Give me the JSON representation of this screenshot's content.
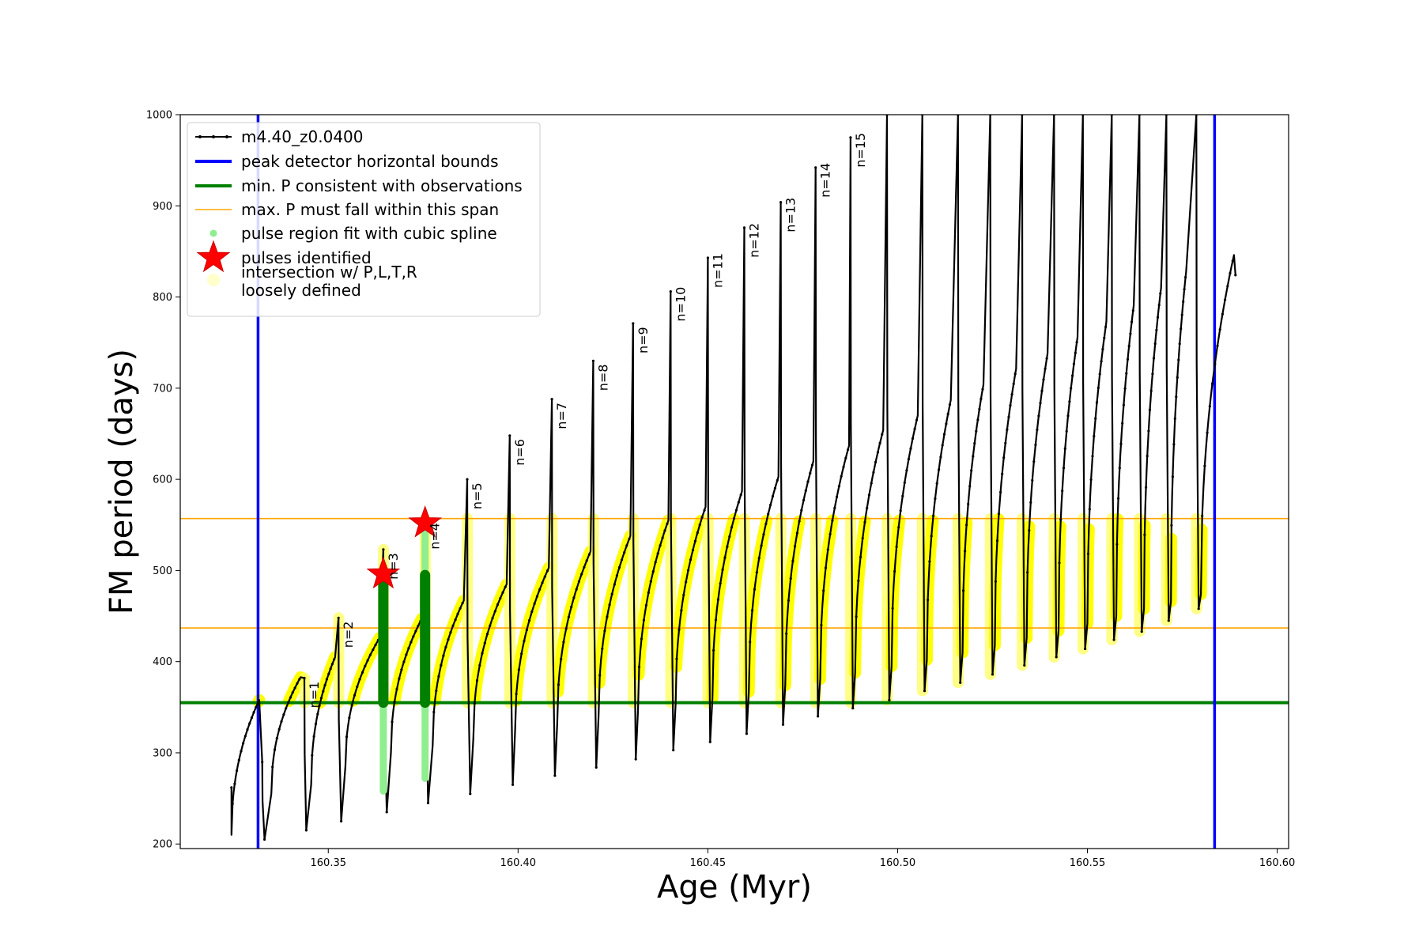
{
  "chart_data": {
    "type": "line",
    "xlabel": "Age (Myr)",
    "ylabel": "FM period (days)",
    "xlim": [
      160.311,
      160.603
    ],
    "ylim": [
      195,
      1000
    ],
    "xticks": [
      160.35,
      160.4,
      160.45,
      160.5,
      160.55,
      160.6
    ],
    "xtick_labels": [
      "160.35",
      "160.40",
      "160.45",
      "160.50",
      "160.55",
      "160.60"
    ],
    "yticks": [
      200,
      300,
      400,
      500,
      600,
      700,
      800,
      900,
      1000
    ],
    "ytick_labels": [
      "200",
      "300",
      "400",
      "500",
      "600",
      "700",
      "800",
      "900",
      "1000"
    ],
    "grid": false,
    "legend_position": "top-left",
    "legend": [
      {
        "label": "m4.40_z0.0400",
        "kind": "line-marker",
        "color": "#000000"
      },
      {
        "label": "peak detector horizontal bounds",
        "kind": "line",
        "color": "#0000ff"
      },
      {
        "label": "min. P consistent with observations",
        "kind": "line",
        "color": "#008000"
      },
      {
        "label": "max. P must fall within this span",
        "kind": "line",
        "color": "#ffa500"
      },
      {
        "label": "pulse region fit with cubic spline",
        "kind": "dot",
        "color": "#90ee90"
      },
      {
        "label": "pulses identified",
        "kind": "star",
        "color": "#ff0000"
      },
      {
        "label": "intersection w/ P,L,T,R\nloosely defined",
        "kind": "dot",
        "color": "#ffffcc"
      }
    ],
    "reference_lines": {
      "peak_detector_bounds_x": [
        160.3315,
        160.5835
      ],
      "min_period_y": 355,
      "max_period_span_y": [
        437,
        557
      ]
    },
    "track": {
      "name": "m4.40_z0.0400",
      "start": {
        "age": 160.3245,
        "period": 262
      },
      "cycles": [
        {
          "n": 0,
          "trough_age": 160.3245,
          "trough_p": 210,
          "peak_age": 160.3318,
          "peak_p": 358,
          "spike_age": 160.3326,
          "spike_p": 290,
          "min_age": 160.3332,
          "min_p": 205
        },
        {
          "n": 1,
          "trough_age": 160.335,
          "trough_p": 255,
          "peak_age": 160.3427,
          "peak_p": 383,
          "spike_age": 160.3437,
          "spike_p": 382,
          "min_age": 160.3442,
          "min_p": 215
        },
        {
          "n": 2,
          "trough_age": 160.3455,
          "trough_p": 265,
          "peak_age": 160.3518,
          "peak_p": 405,
          "spike_age": 160.3527,
          "spike_p": 448,
          "min_age": 160.3534,
          "min_p": 225
        },
        {
          "n": 3,
          "trough_age": 160.3545,
          "trough_p": 285,
          "peak_age": 160.3635,
          "peak_p": 426,
          "spike_age": 160.3645,
          "spike_p": 523,
          "min_age": 160.3654,
          "min_p": 235
        },
        {
          "n": 4,
          "trough_age": 160.3665,
          "trough_p": 300,
          "peak_age": 160.3746,
          "peak_p": 447,
          "spike_age": 160.3755,
          "spike_p": 556,
          "min_age": 160.3763,
          "min_p": 245
        },
        {
          "n": 5,
          "trough_age": 160.3775,
          "trough_p": 308,
          "peak_age": 160.3857,
          "peak_p": 467,
          "spike_age": 160.3866,
          "spike_p": 600,
          "min_age": 160.3874,
          "min_p": 255
        },
        {
          "n": 6,
          "trough_age": 160.3882,
          "trough_p": 315,
          "peak_age": 160.397,
          "peak_p": 485,
          "spike_age": 160.3978,
          "spike_p": 648,
          "min_age": 160.3986,
          "min_p": 265
        },
        {
          "n": 7,
          "trough_age": 160.3992,
          "trough_p": 323,
          "peak_age": 160.4081,
          "peak_p": 503,
          "spike_age": 160.4089,
          "spike_p": 688,
          "min_age": 160.4097,
          "min_p": 275
        },
        {
          "n": 8,
          "trough_age": 160.4103,
          "trough_p": 331,
          "peak_age": 160.4191,
          "peak_p": 521,
          "spike_age": 160.4198,
          "spike_p": 730,
          "min_age": 160.4206,
          "min_p": 284
        },
        {
          "n": 9,
          "trough_age": 160.4212,
          "trough_p": 339,
          "peak_age": 160.4296,
          "peak_p": 538,
          "spike_age": 160.4303,
          "spike_p": 771,
          "min_age": 160.431,
          "min_p": 293
        },
        {
          "n": 10,
          "trough_age": 160.4316,
          "trough_p": 346,
          "peak_age": 160.4396,
          "peak_p": 555,
          "spike_age": 160.4402,
          "spike_p": 806,
          "min_age": 160.4409,
          "min_p": 303
        },
        {
          "n": 11,
          "trough_age": 160.4415,
          "trough_p": 353,
          "peak_age": 160.4494,
          "peak_p": 570,
          "spike_age": 160.45,
          "spike_p": 843,
          "min_age": 160.4506,
          "min_p": 312
        },
        {
          "n": 12,
          "trough_age": 160.4512,
          "trough_p": 360,
          "peak_age": 160.459,
          "peak_p": 587,
          "spike_age": 160.4596,
          "spike_p": 876,
          "min_age": 160.4602,
          "min_p": 321
        },
        {
          "n": 13,
          "trough_age": 160.4608,
          "trough_p": 367,
          "peak_age": 160.4686,
          "peak_p": 603,
          "spike_age": 160.4692,
          "spike_p": 904,
          "min_age": 160.4698,
          "min_p": 331
        },
        {
          "n": 14,
          "trough_age": 160.4704,
          "trough_p": 374,
          "peak_age": 160.4778,
          "peak_p": 620,
          "spike_age": 160.4784,
          "spike_p": 942,
          "min_age": 160.479,
          "min_p": 340
        },
        {
          "n": 15,
          "trough_age": 160.4796,
          "trough_p": 381,
          "peak_age": 160.4872,
          "peak_p": 637,
          "spike_age": 160.4876,
          "spike_p": 975,
          "min_age": 160.4882,
          "min_p": 349
        },
        {
          "n": 16,
          "trough_age": 160.4888,
          "trough_p": 388,
          "peak_age": 160.4962,
          "peak_p": 654,
          "spike_age": 160.4972,
          "spike_p": 1000,
          "min_age": 160.4978,
          "min_p": 358
        },
        {
          "n": 17,
          "trough_age": 160.4984,
          "trough_p": 395,
          "peak_age": 160.5053,
          "peak_p": 670,
          "spike_age": 160.5065,
          "spike_p": 1000,
          "min_age": 160.5071,
          "min_p": 368
        },
        {
          "n": 18,
          "trough_age": 160.5077,
          "trough_p": 402,
          "peak_age": 160.514,
          "peak_p": 687,
          "spike_age": 160.5159,
          "spike_p": 1000,
          "min_age": 160.5165,
          "min_p": 377
        },
        {
          "n": 19,
          "trough_age": 160.5171,
          "trough_p": 410,
          "peak_age": 160.5226,
          "peak_p": 704,
          "spike_age": 160.5244,
          "spike_p": 1000,
          "min_age": 160.525,
          "min_p": 386
        },
        {
          "n": 20,
          "trough_age": 160.5256,
          "trough_p": 418,
          "peak_age": 160.5312,
          "peak_p": 721,
          "spike_age": 160.5328,
          "spike_p": 1000,
          "min_age": 160.5334,
          "min_p": 396
        },
        {
          "n": 21,
          "trough_age": 160.534,
          "trough_p": 426,
          "peak_age": 160.5395,
          "peak_p": 738,
          "spike_age": 160.5412,
          "spike_p": 1000,
          "min_age": 160.5418,
          "min_p": 405
        },
        {
          "n": 22,
          "trough_age": 160.5424,
          "trough_p": 434,
          "peak_age": 160.5474,
          "peak_p": 756,
          "spike_age": 160.5488,
          "spike_p": 1000,
          "min_age": 160.5494,
          "min_p": 414
        },
        {
          "n": 23,
          "trough_age": 160.55,
          "trough_p": 442,
          "peak_age": 160.555,
          "peak_p": 773,
          "spike_age": 160.5564,
          "spike_p": 1000,
          "min_age": 160.557,
          "min_p": 424
        },
        {
          "n": 24,
          "trough_age": 160.5576,
          "trough_p": 450,
          "peak_age": 160.5622,
          "peak_p": 791,
          "spike_age": 160.5637,
          "spike_p": 1000,
          "min_age": 160.5643,
          "min_p": 433
        },
        {
          "n": 25,
          "trough_age": 160.5649,
          "trough_p": 458,
          "peak_age": 160.5694,
          "peak_p": 810,
          "spike_age": 160.5708,
          "spike_p": 1000,
          "min_age": 160.5714,
          "min_p": 445
        },
        {
          "n": 26,
          "trough_age": 160.572,
          "trough_p": 466,
          "peak_age": 160.576,
          "peak_p": 828,
          "spike_age": 160.5787,
          "spike_p": 1000,
          "min_age": 160.5793,
          "min_p": 458
        },
        {
          "n": 27,
          "trough_age": 160.5799,
          "trough_p": 474,
          "peak_age": 160.5886,
          "peak_p": 846,
          "spike_age": 160.5886,
          "spike_p": 846,
          "min_age": 160.589,
          "min_p": 824
        }
      ]
    },
    "pulse_labels": [
      {
        "text": "n=1",
        "age": 160.3437,
        "period": 382
      },
      {
        "text": "n=2",
        "age": 160.3527,
        "period": 448
      },
      {
        "text": "n=3",
        "age": 160.3645,
        "period": 523
      },
      {
        "text": "n=4",
        "age": 160.3755,
        "period": 556
      },
      {
        "text": "n=5",
        "age": 160.3866,
        "period": 600
      },
      {
        "text": "n=6",
        "age": 160.3978,
        "period": 648
      },
      {
        "text": "n=7",
        "age": 160.4089,
        "period": 688
      },
      {
        "text": "n=8",
        "age": 160.4198,
        "period": 730
      },
      {
        "text": "n=9",
        "age": 160.4303,
        "period": 771
      },
      {
        "text": "n=10",
        "age": 160.4402,
        "period": 806
      },
      {
        "text": "n=11",
        "age": 160.45,
        "period": 843
      },
      {
        "text": "n=12",
        "age": 160.4596,
        "period": 876
      },
      {
        "text": "n=13",
        "age": 160.4692,
        "period": 904
      },
      {
        "text": "n=14",
        "age": 160.4784,
        "period": 942
      },
      {
        "text": "n=15",
        "age": 160.4876,
        "period": 975
      }
    ],
    "pulses_identified": [
      {
        "age": 160.3645,
        "period": 496
      },
      {
        "age": 160.3755,
        "period": 552
      }
    ],
    "cubic_spline_regions": [
      {
        "age": 160.3645,
        "period_min": 258,
        "period_max": 505
      },
      {
        "age": 160.3755,
        "period_min": 272,
        "period_max": 548
      }
    ]
  }
}
